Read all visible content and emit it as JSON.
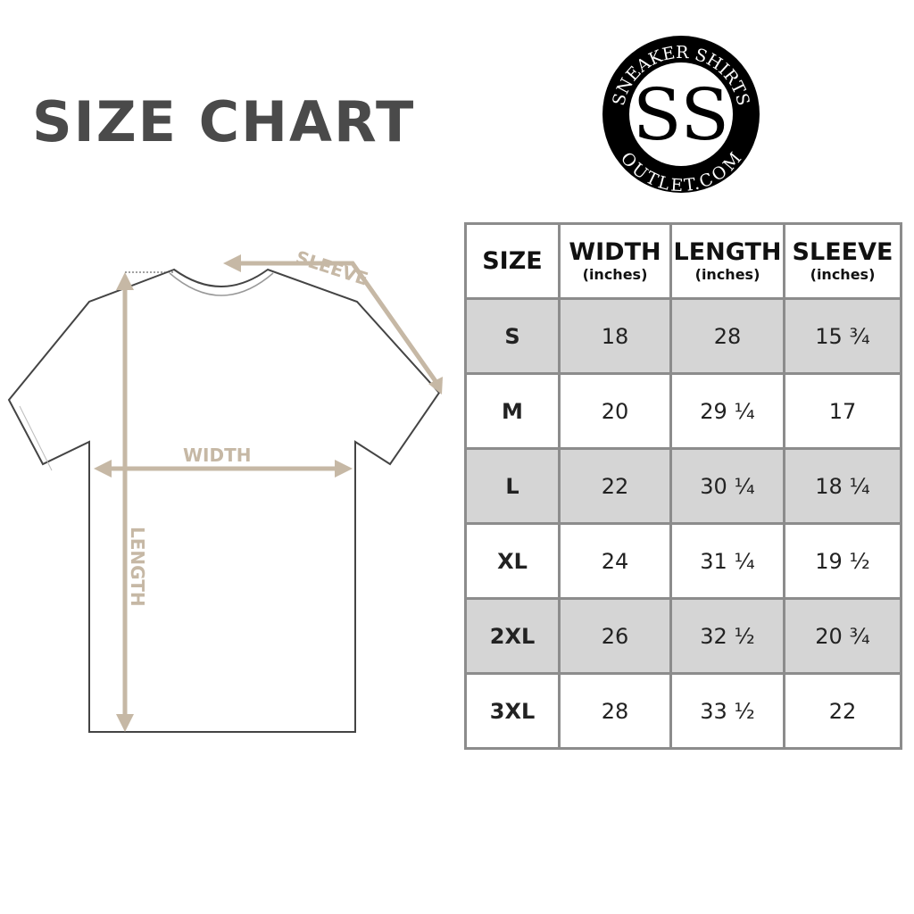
{
  "title": "SIZE CHART",
  "logo": {
    "text_top": "SNEAKER SHIRTS",
    "text_bottom": "OUTLET.COM",
    "monogram": "SS"
  },
  "diagram": {
    "sleeve_label": "SLEEVE",
    "width_label": "WIDTH",
    "length_label": "LENGTH",
    "accent_color": "#c6b8a5"
  },
  "table": {
    "headers": [
      {
        "label": "SIZE",
        "unit": ""
      },
      {
        "label": "WIDTH",
        "unit": "(inches)"
      },
      {
        "label": "LENGTH",
        "unit": "(inches)"
      },
      {
        "label": "SLEEVE",
        "unit": "(inches)"
      }
    ],
    "rows": [
      [
        "S",
        "18",
        "28",
        "15 ¾"
      ],
      [
        "M",
        "20",
        "29 ¼",
        "17"
      ],
      [
        "L",
        "22",
        "30 ¼",
        "18 ¼"
      ],
      [
        "XL",
        "24",
        "31 ¼",
        "19 ½"
      ],
      [
        "2XL",
        "26",
        "32 ½",
        "20 ¾"
      ],
      [
        "3XL",
        "28",
        "33 ½",
        "22"
      ]
    ]
  }
}
